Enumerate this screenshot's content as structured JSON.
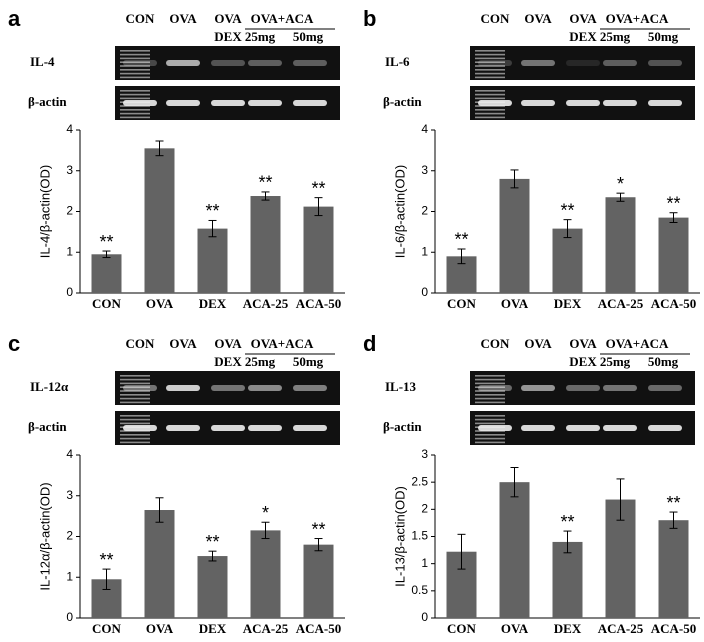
{
  "chart_data": [
    {
      "type": "bar",
      "panel_label": "a",
      "header_labels": [
        "CON",
        "OVA",
        "OVA",
        "DEX",
        "OVA+ACA",
        "25mg",
        "50mg"
      ],
      "gel_labels": [
        "IL-4",
        "β-actin"
      ],
      "y_label": "IL-4/β-actin(OD)",
      "categories": [
        "CON",
        "OVA",
        "DEX",
        "ACA-25",
        "ACA-50"
      ],
      "values": [
        0.95,
        3.55,
        1.58,
        2.38,
        2.12
      ],
      "errors": [
        0.08,
        0.18,
        0.2,
        0.1,
        0.22
      ],
      "annotations": [
        "**",
        null,
        "**",
        "**",
        "**"
      ],
      "color": "#636363",
      "ylim": [
        0,
        4
      ],
      "yticks": [
        0,
        1,
        2,
        3,
        4
      ]
    },
    {
      "type": "bar",
      "panel_label": "b",
      "header_labels": [
        "CON",
        "OVA",
        "OVA",
        "DEX",
        "OVA+ACA",
        "25mg",
        "50mg"
      ],
      "gel_labels": [
        "IL-6",
        "β-actin"
      ],
      "y_label": "IL-6/β-actin(OD)",
      "categories": [
        "CON",
        "OVA",
        "DEX",
        "ACA-25",
        "ACA-50"
      ],
      "values": [
        0.9,
        2.8,
        1.58,
        2.35,
        1.85
      ],
      "errors": [
        0.18,
        0.22,
        0.22,
        0.1,
        0.12
      ],
      "annotations": [
        "**",
        null,
        "**",
        "*",
        "**"
      ],
      "color": "#636363",
      "ylim": [
        0,
        4
      ],
      "yticks": [
        0,
        1,
        2,
        3,
        4
      ]
    },
    {
      "type": "bar",
      "panel_label": "c",
      "header_labels": [
        "CON",
        "OVA",
        "OVA",
        "DEX",
        "OVA+ACA",
        "25mg",
        "50mg"
      ],
      "gel_labels": [
        "IL-12α",
        "β-actin"
      ],
      "y_label": "IL-12α/β-actin(OD)",
      "categories": [
        "CON",
        "OVA",
        "DEX",
        "ACA-25",
        "ACA-50"
      ],
      "values": [
        0.95,
        2.65,
        1.52,
        2.15,
        1.8
      ],
      "errors": [
        0.25,
        0.3,
        0.12,
        0.2,
        0.15
      ],
      "annotations": [
        "**",
        null,
        "**",
        "*",
        "**"
      ],
      "color": "#636363",
      "ylim": [
        0,
        4
      ],
      "yticks": [
        0,
        1,
        2,
        3,
        4
      ]
    },
    {
      "type": "bar",
      "panel_label": "d",
      "header_labels": [
        "CON",
        "OVA",
        "OVA",
        "DEX",
        "OVA+ACA",
        "25mg",
        "50mg"
      ],
      "gel_labels": [
        "IL-13",
        "β-actin"
      ],
      "y_label": "IL-13/β-actin(OD)",
      "categories": [
        "CON",
        "OVA",
        "DEX",
        "ACA-25",
        "ACA-50"
      ],
      "values": [
        1.22,
        2.5,
        1.4,
        2.18,
        1.8
      ],
      "errors": [
        0.32,
        0.27,
        0.2,
        0.38,
        0.15
      ],
      "annotations": [
        null,
        null,
        "**",
        null,
        "**"
      ],
      "color": "#636363",
      "ylim": [
        0,
        3
      ],
      "yticks": [
        0,
        0.5,
        1,
        1.5,
        2,
        2.5,
        3
      ]
    }
  ]
}
